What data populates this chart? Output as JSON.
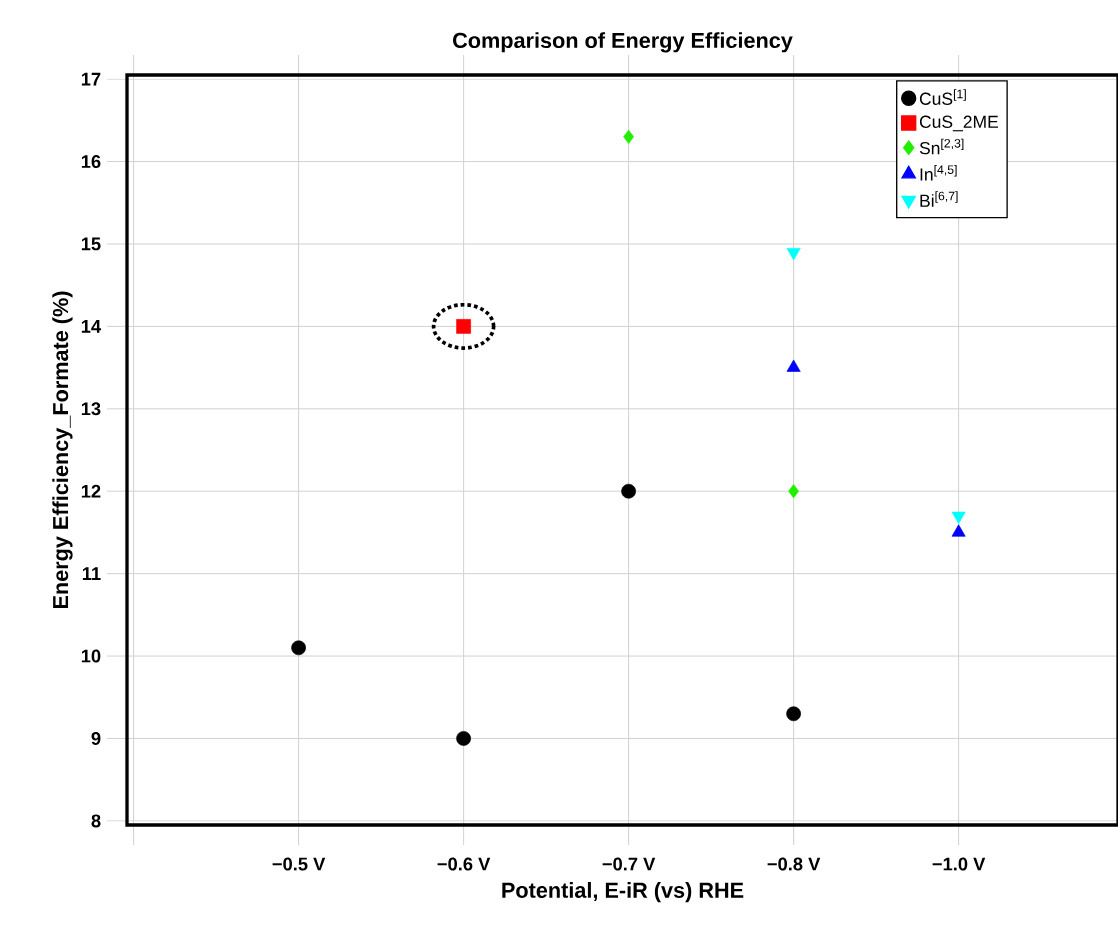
{
  "chart_data": {
    "type": "scatter",
    "title": "Comparison of Energy Efficiency",
    "xlabel": "Potential, E-iR (vs) RHE",
    "ylabel": "Energy Efficiency_Formate (%)",
    "categories": [
      null,
      "−0.5 V",
      "−0.6 V",
      "−0.7 V",
      "−0.8 V",
      "−1.0 V"
    ],
    "ylim": [
      7.95,
      17.05
    ],
    "yticks": [
      8,
      9,
      10,
      11,
      12,
      13,
      14,
      15,
      16,
      17
    ],
    "grid": true,
    "legend": "top right",
    "series": [
      {
        "name": "CuS$^{[1]}$",
        "color": "#000000",
        "marker": "circle",
        "values": [
          null,
          10.1,
          9.0,
          12.0,
          9.3,
          null
        ]
      },
      {
        "name": "CuS_2ME",
        "color": "#ff0000",
        "marker": "square",
        "values": [
          null,
          null,
          14.0,
          null,
          null,
          null
        ]
      },
      {
        "name": "Sn$^{[2,3]}$",
        "color": "#22ee00",
        "marker": "diamond",
        "values": [
          null,
          null,
          null,
          16.3,
          12.0,
          null
        ]
      },
      {
        "name": "In$^{[4,5]}$",
        "color": "#0000ff",
        "marker": "triangle",
        "values": [
          null,
          null,
          null,
          null,
          13.5,
          11.5
        ]
      },
      {
        "name": "Bi$^{[6,7]}$",
        "color": "#00ffff",
        "marker": "triangle-down",
        "values": [
          null,
          null,
          null,
          null,
          14.9,
          11.7
        ]
      }
    ]
  }
}
